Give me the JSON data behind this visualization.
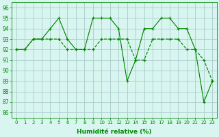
{
  "x": [
    0,
    1,
    2,
    3,
    4,
    5,
    6,
    7,
    8,
    9,
    10,
    11,
    12,
    13,
    14,
    15,
    16,
    17,
    18,
    19,
    20,
    21,
    22,
    23
  ],
  "line1": [
    92,
    92,
    93,
    93,
    94,
    95,
    93,
    92,
    92,
    95,
    95,
    95,
    94,
    89,
    91,
    94,
    94,
    95,
    95,
    94,
    94,
    92,
    87,
    89
  ],
  "line2": [
    92,
    92,
    93,
    93,
    93,
    93,
    92,
    92,
    92,
    92,
    93,
    93,
    93,
    93,
    91,
    91,
    93,
    93,
    93,
    93,
    92,
    92,
    91,
    89
  ],
  "xlabel": "Humidité relative (%)",
  "ylabel_ticks": [
    86,
    87,
    88,
    89,
    90,
    91,
    92,
    93,
    94,
    95,
    96
  ],
  "ylim": [
    85.5,
    96.5
  ],
  "xlim": [
    -0.5,
    23.5
  ],
  "line_color": "#008800",
  "bg_color": "#d8f5f0",
  "grid_color": "#aacccc",
  "marker": "+"
}
